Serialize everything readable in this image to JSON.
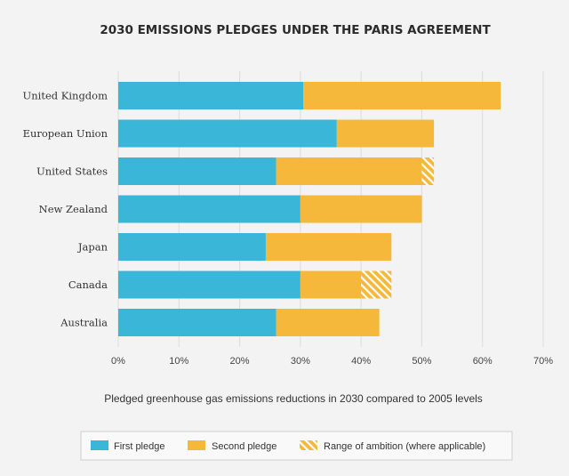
{
  "chart_data": {
    "type": "bar",
    "orientation": "horizontal",
    "stacked": true,
    "title": "2030 EMISSIONS PLEDGES UNDER THE PARIS AGREEMENT",
    "xlabel": "Pledged greenhouse gas emissions reductions in 2030 compared to 2005 levels",
    "ylabel": "",
    "xlim": [
      0,
      70
    ],
    "ticks": [
      0,
      10,
      20,
      30,
      40,
      50,
      60,
      70
    ],
    "tick_labels": [
      "0%",
      "10%",
      "20%",
      "30%",
      "40%",
      "50%",
      "60%",
      "70%"
    ],
    "grid": true,
    "categories": [
      "United Kingdom",
      "European Union",
      "United States",
      "New Zealand",
      "Japan",
      "Canada",
      "Australia"
    ],
    "series": [
      {
        "name": "First pledge",
        "values": [
          30.5,
          36,
          26,
          30,
          24.3,
          30,
          26
        ],
        "color": "#3ab7d8"
      },
      {
        "name": "Second pledge",
        "values": [
          32.5,
          16,
          24,
          20,
          20.7,
          10,
          17
        ],
        "color": "#f6b83a"
      },
      {
        "name": "Range of ambition (where applicable)",
        "values": [
          0,
          0,
          2,
          0,
          0,
          5,
          0
        ],
        "color": "#f6b83a",
        "pattern": "hatched"
      }
    ],
    "legend": {
      "position": "bottom",
      "entries": [
        "First pledge",
        "Second pledge",
        "Range of ambition (where applicable)"
      ]
    }
  }
}
